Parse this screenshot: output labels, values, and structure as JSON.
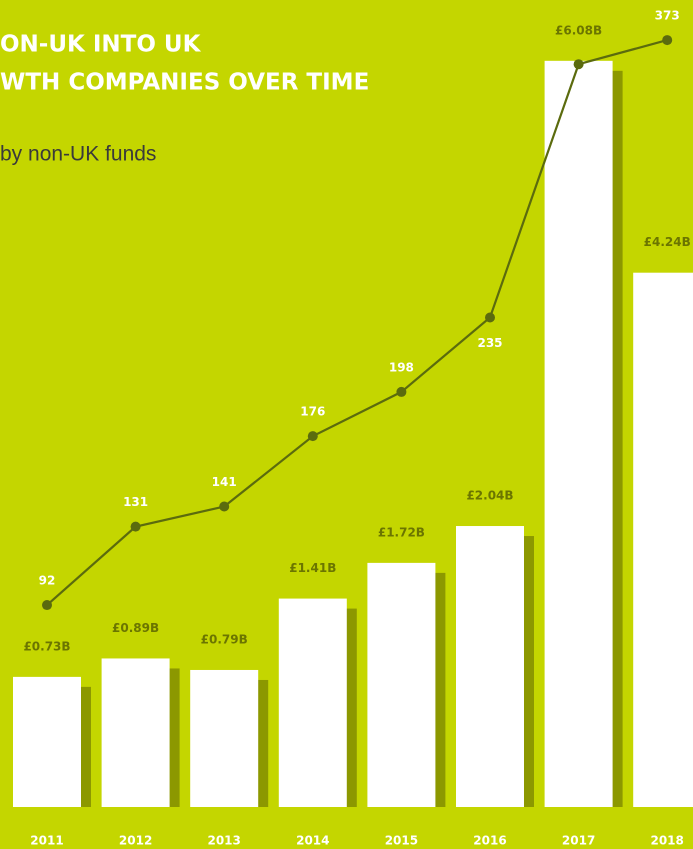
{
  "chart_data": {
    "type": "bar",
    "title_lines": [
      "ON-UK INTO UK",
      "WTH COMPANIES OVER TIME"
    ],
    "subtitle": "by non-UK funds",
    "background": "#c4d600",
    "categories": [
      "2011",
      "2012",
      "2013",
      "2014",
      "2015",
      "2016",
      "2017",
      "2018"
    ],
    "series": [
      {
        "type": "bar",
        "color": "#ffffff",
        "shadow_color": "#8c9800",
        "label_color": "#6b7500",
        "values": [
          0.73,
          0.89,
          0.79,
          1.41,
          1.72,
          2.04,
          6.08,
          4.24
        ],
        "value_labels": [
          "£0.73B",
          "£0.89B",
          "£0.79B",
          "£1.41B",
          "£1.72B",
          "£2.04B",
          "£6.08B",
          "£4.24B"
        ]
      },
      {
        "type": "line",
        "axis": "y2",
        "color": "#5b6b0e",
        "label_color": "#ffffff",
        "values": [
          92,
          131,
          141,
          176,
          198,
          235,
          361,
          373
        ]
      }
    ],
    "ylim": [
      -0.4,
      6.2
    ],
    "y2lim": [
      0,
      380
    ]
  }
}
